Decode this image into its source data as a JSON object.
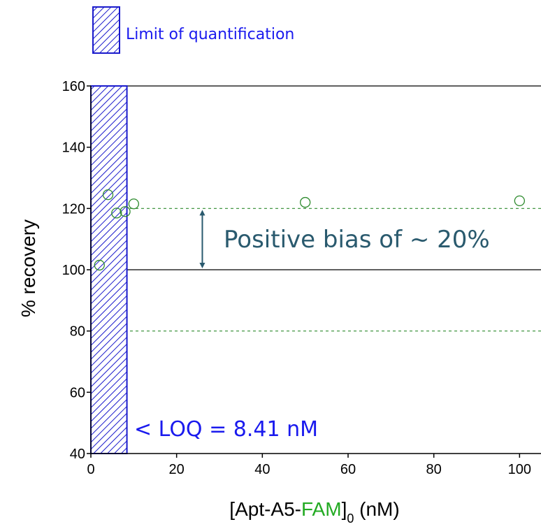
{
  "chart_data": {
    "type": "scatter",
    "xlabel_parts": {
      "prefix": "[Apt-A5-",
      "highlight": "FAM",
      "suffix_bracket": "]",
      "subscript": "0",
      "unit": " (nM)"
    },
    "ylabel": "% recovery",
    "xlim": [
      0,
      105
    ],
    "ylim": [
      40,
      160
    ],
    "x_ticks": [
      0,
      20,
      40,
      60,
      80,
      100
    ],
    "y_ticks": [
      40,
      60,
      80,
      100,
      120,
      140,
      160
    ],
    "series": [
      {
        "marker": "open-circle",
        "color": "#2e8b2e",
        "points": [
          {
            "x": 2,
            "y": 101.5
          },
          {
            "x": 4,
            "y": 124.5
          },
          {
            "x": 6,
            "y": 118.5
          },
          {
            "x": 8,
            "y": 119
          },
          {
            "x": 10,
            "y": 121.5
          },
          {
            "x": 50,
            "y": 122
          },
          {
            "x": 100,
            "y": 122.5
          }
        ]
      }
    ],
    "reference_lines": [
      {
        "y": 100,
        "style": "solid",
        "color": "#000000"
      },
      {
        "y": 120,
        "style": "dashed",
        "color": "#2e8b2e"
      },
      {
        "y": 80,
        "style": "dashed",
        "color": "#2e8b2e"
      },
      {
        "y": 160,
        "style": "solid",
        "color": "#000000"
      }
    ],
    "loq_region": {
      "x_start": 0,
      "x_end": 8.41,
      "color": "#1a1acc"
    },
    "legend": {
      "label": "Limit of quantification",
      "position": "top-left"
    },
    "annotations": {
      "bias_text": "Positive bias of ~ 20%",
      "bias_color": "#2a5a6e",
      "bias_arrow_x": 26,
      "bias_arrow_from": 100,
      "bias_arrow_to": 120,
      "loq_text": "< LOQ = 8.41 nM",
      "loq_color": "#1a1aee"
    },
    "xlabel_highlight_color": "#22aa22"
  }
}
